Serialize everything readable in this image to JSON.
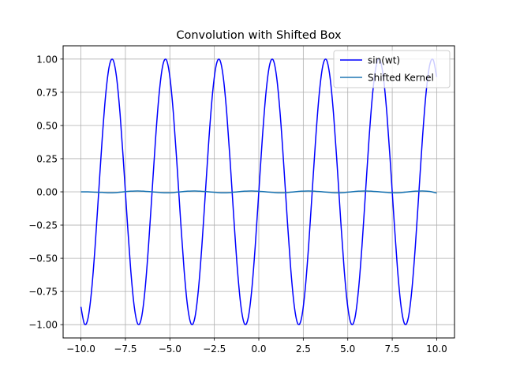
{
  "chart_data": {
    "type": "line",
    "title": "Convolution with Shifted Box",
    "xlabel": "",
    "ylabel": "",
    "xlim": [
      -11.0,
      11.0
    ],
    "ylim": [
      -1.1,
      1.1
    ],
    "grid": true,
    "legend_position": "top-right",
    "x_ticks": [
      -10.0,
      -7.5,
      -5.0,
      -2.5,
      0.0,
      2.5,
      5.0,
      7.5,
      10.0
    ],
    "x_tick_labels": [
      "−10.0",
      "−7.5",
      "−5.0",
      "−2.5",
      "0.0",
      "2.5",
      "5.0",
      "7.5",
      "10.0"
    ],
    "y_ticks": [
      -1.0,
      -0.75,
      -0.5,
      -0.25,
      0.0,
      0.25,
      0.5,
      0.75,
      1.0
    ],
    "y_tick_labels": [
      "−1.00",
      "−0.75",
      "−0.50",
      "−0.25",
      "0.00",
      "0.25",
      "0.50",
      "0.75",
      "1.00"
    ],
    "series": [
      {
        "name": "sin(wt)",
        "color": "#0000ff",
        "x": [
          -10.0,
          -9.8,
          -9.6,
          -9.4,
          -9.2,
          -9.0,
          -8.8,
          -8.6,
          -8.4,
          -8.2,
          -8.0,
          -7.8,
          -7.6,
          -7.4,
          -7.2,
          -7.0,
          -6.8,
          -6.6,
          -6.4,
          -6.2,
          -6.0,
          -5.8,
          -5.6,
          -5.4,
          -5.2,
          -5.0,
          -4.8,
          -4.6,
          -4.4,
          -4.2,
          -4.0,
          -3.8,
          -3.6,
          -3.4,
          -3.2,
          -3.0,
          -2.8,
          -2.6,
          -2.4,
          -2.2,
          -2.0,
          -1.8,
          -1.6,
          -1.4,
          -1.2,
          -1.0,
          -0.8,
          -0.6,
          -0.4,
          -0.2,
          0.0,
          0.2,
          0.4,
          0.6,
          0.8,
          1.0,
          1.2,
          1.4,
          1.6,
          1.8,
          2.0,
          2.2,
          2.4,
          2.6,
          2.8,
          3.0,
          3.2,
          3.4,
          3.6,
          3.8,
          4.0,
          4.2,
          4.4,
          4.6,
          4.8,
          5.0,
          5.2,
          5.4,
          5.6,
          5.8,
          6.0,
          6.2,
          6.4,
          6.6,
          6.8,
          7.0,
          7.2,
          7.4,
          7.6,
          7.8,
          8.0,
          8.2,
          8.4,
          8.6,
          8.8,
          9.0,
          9.2,
          9.4,
          9.6,
          9.8,
          10.0
        ],
        "y": [
          -0.866,
          -0.995,
          -0.951,
          -0.743,
          -0.407,
          0.0,
          0.407,
          0.743,
          0.951,
          0.995,
          0.866,
          0.588,
          0.208,
          -0.208,
          -0.588,
          -0.866,
          -0.995,
          -0.951,
          -0.743,
          -0.407,
          0.0,
          0.407,
          0.743,
          0.951,
          0.995,
          0.866,
          0.588,
          0.208,
          -0.208,
          -0.588,
          -0.866,
          -0.995,
          -0.951,
          -0.743,
          -0.407,
          0.0,
          0.407,
          0.743,
          0.951,
          0.995,
          0.866,
          0.588,
          0.208,
          -0.208,
          -0.588,
          -0.866,
          -0.995,
          -0.951,
          -0.743,
          -0.407,
          0.0,
          0.407,
          0.743,
          0.951,
          0.995,
          0.866,
          0.588,
          0.208,
          -0.208,
          -0.588,
          -0.866,
          -0.995,
          -0.951,
          -0.743,
          -0.407,
          0.0,
          0.407,
          0.743,
          0.951,
          0.995,
          0.866,
          0.588,
          0.208,
          -0.208,
          -0.588,
          -0.866,
          -0.995,
          -0.951,
          -0.743,
          -0.407,
          0.0,
          0.407,
          0.743,
          0.951,
          0.995,
          0.866,
          0.588,
          0.208,
          -0.208,
          -0.588,
          -0.866,
          -0.995,
          -0.951,
          -0.743,
          -0.407,
          0.0,
          0.407,
          0.743,
          0.951,
          0.995,
          0.866
        ]
      },
      {
        "name": "Shifted Kernel",
        "color": "#1f77b4",
        "x": [
          -10.0,
          -9.6,
          -9.2,
          -8.8,
          -8.4,
          -8.0,
          -7.6,
          -7.2,
          -6.8,
          -6.4,
          -6.0,
          -5.6,
          -5.2,
          -4.8,
          -4.4,
          -4.0,
          -3.6,
          -3.2,
          -2.8,
          -2.4,
          -2.0,
          -1.6,
          -1.2,
          -0.8,
          -0.4,
          0.0,
          0.4,
          0.8,
          1.2,
          1.6,
          2.0,
          2.4,
          2.8,
          3.2,
          3.6,
          4.0,
          4.4,
          4.8,
          5.2,
          5.6,
          6.0,
          6.4,
          6.8,
          7.2,
          7.6,
          8.0,
          8.4,
          8.8,
          9.2,
          9.6,
          10.0
        ],
        "y": [
          0.0,
          0.0,
          -0.002,
          -0.004,
          -0.007,
          -0.005,
          0.0,
          0.005,
          0.007,
          0.004,
          0.0,
          -0.004,
          -0.007,
          -0.005,
          0.0,
          0.005,
          0.007,
          0.004,
          0.0,
          -0.004,
          -0.007,
          -0.005,
          0.0,
          0.005,
          0.007,
          0.004,
          0.0,
          -0.004,
          -0.007,
          -0.005,
          0.0,
          0.005,
          0.007,
          0.004,
          0.0,
          -0.004,
          -0.007,
          -0.005,
          0.0,
          0.005,
          0.007,
          0.004,
          0.0,
          -0.004,
          -0.007,
          -0.005,
          0.0,
          0.005,
          0.007,
          0.003,
          -0.008
        ]
      }
    ]
  }
}
